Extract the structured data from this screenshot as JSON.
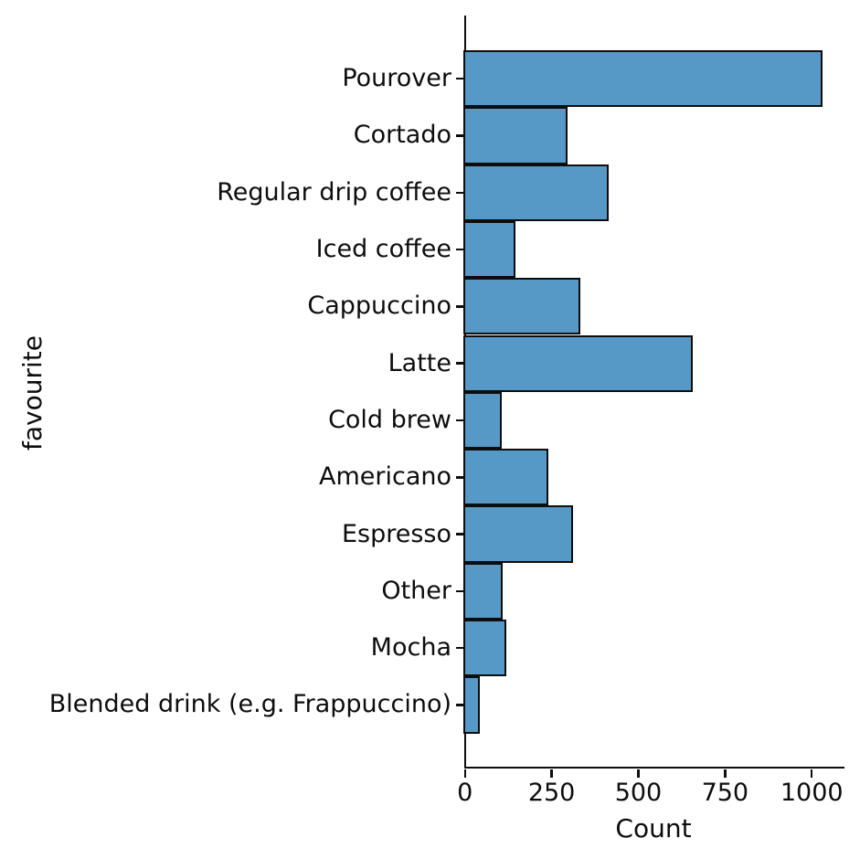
{
  "chart_data": {
    "type": "bar",
    "orientation": "horizontal",
    "title": "",
    "xlabel": "Count",
    "ylabel": "favourite",
    "categories": [
      "Pourover",
      "Cortado",
      "Regular drip coffee",
      "Iced coffee",
      "Cappuccino",
      "Latte",
      "Cold brew",
      "Americano",
      "Espresso",
      "Other",
      "Mocha",
      "Blended drink (e.g. Frappuccino)"
    ],
    "values": [
      1029,
      293,
      413,
      143,
      330,
      655,
      103,
      239,
      310,
      106,
      116,
      42
    ],
    "x_ticks": [
      0,
      250,
      500,
      750,
      1000
    ],
    "xlim": [
      0,
      1091
    ],
    "grid": false,
    "legend": null,
    "bar_color": "#5799c6",
    "bar_edge_color": "#0d0d0d",
    "text_color": "#0d0d0d"
  }
}
